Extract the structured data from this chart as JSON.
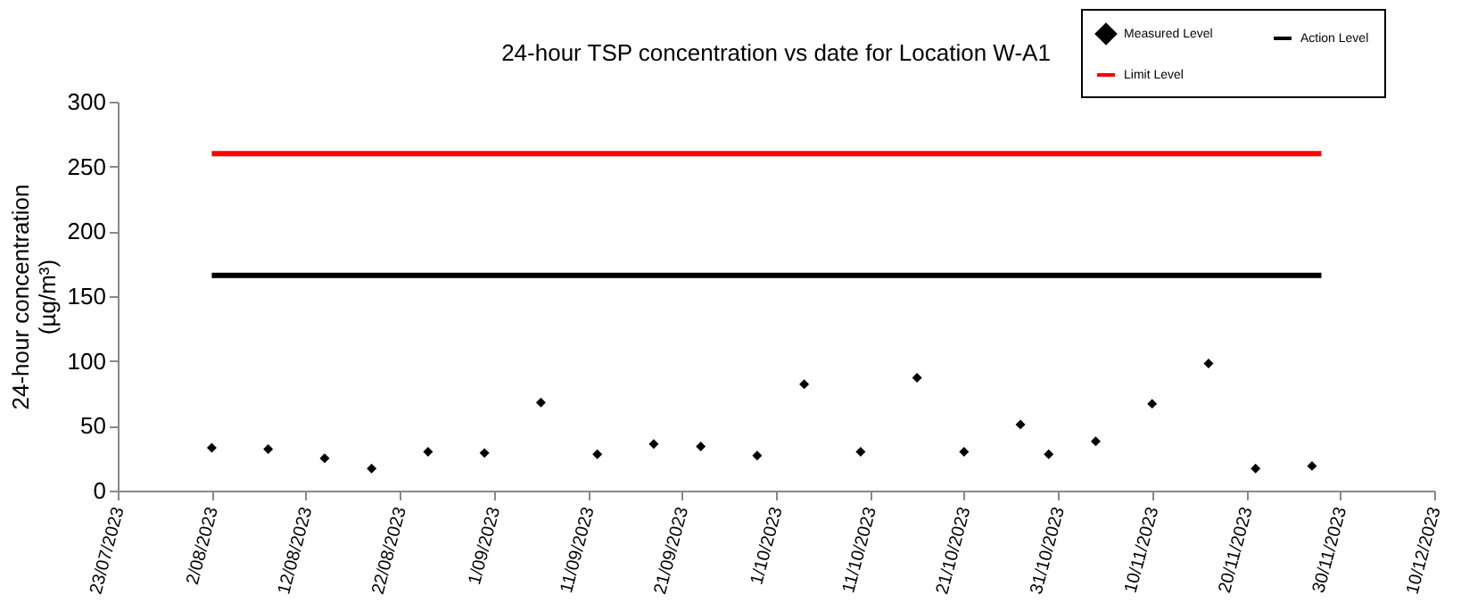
{
  "chart_data": {
    "type": "scatter",
    "title": "24-hour TSP concentration vs date for Location W-A1",
    "ylabel": "24-hour concentration\n(µg/m³)",
    "xlim": [
      "2023-07-23",
      "2023-12-10"
    ],
    "xticks": [
      {
        "value": "2023-07-23",
        "label": "23/07/2023"
      },
      {
        "value": "2023-08-02",
        "label": "2/08/2023"
      },
      {
        "value": "2023-08-12",
        "label": "12/08/2023"
      },
      {
        "value": "2023-08-22",
        "label": "22/08/2023"
      },
      {
        "value": "2023-09-01",
        "label": "1/09/2023"
      },
      {
        "value": "2023-09-11",
        "label": "11/09/2023"
      },
      {
        "value": "2023-09-21",
        "label": "21/09/2023"
      },
      {
        "value": "2023-10-01",
        "label": "1/10/2023"
      },
      {
        "value": "2023-10-11",
        "label": "11/10/2023"
      },
      {
        "value": "2023-10-21",
        "label": "21/10/2023"
      },
      {
        "value": "2023-10-31",
        "label": "31/10/2023"
      },
      {
        "value": "2023-11-10",
        "label": "10/11/2023"
      },
      {
        "value": "2023-11-20",
        "label": "20/11/2023"
      },
      {
        "value": "2023-11-30",
        "label": "30/11/2023"
      },
      {
        "value": "2023-12-10",
        "label": "10/12/2023"
      }
    ],
    "ylim": [
      0,
      300
    ],
    "yticks": [
      0,
      50,
      100,
      150,
      200,
      250,
      300
    ],
    "grid": false,
    "legend": "top right",
    "series": [
      {
        "name": "Measured Level",
        "color": "#000000",
        "marker": "diamond",
        "x": [
          "2023-08-02",
          "2023-08-08",
          "2023-08-14",
          "2023-08-19",
          "2023-08-25",
          "2023-08-31",
          "2023-09-06",
          "2023-09-12",
          "2023-09-18",
          "2023-09-23",
          "2023-09-29",
          "2023-10-04",
          "2023-10-10",
          "2023-10-16",
          "2023-10-21",
          "2023-10-27",
          "2023-10-30",
          "2023-11-04",
          "2023-11-10",
          "2023-11-16",
          "2023-11-21",
          "2023-11-27"
        ],
        "values": [
          33,
          32,
          25,
          17,
          30,
          29,
          68,
          28,
          36,
          34,
          27,
          82,
          30,
          87,
          30,
          51,
          28,
          38,
          67,
          98,
          17,
          19
        ]
      },
      {
        "name": "Action Level",
        "type": "line",
        "color": "#000000",
        "line_style": "solid",
        "x": [
          "2023-08-02",
          "2023-11-28"
        ],
        "values": [
          166,
          166
        ]
      },
      {
        "name": "Limit Level",
        "type": "line",
        "color": "#ff0000",
        "line_style": "solid",
        "x": [
          "2023-08-02",
          "2023-11-28"
        ],
        "values": [
          260,
          260
        ]
      }
    ]
  }
}
